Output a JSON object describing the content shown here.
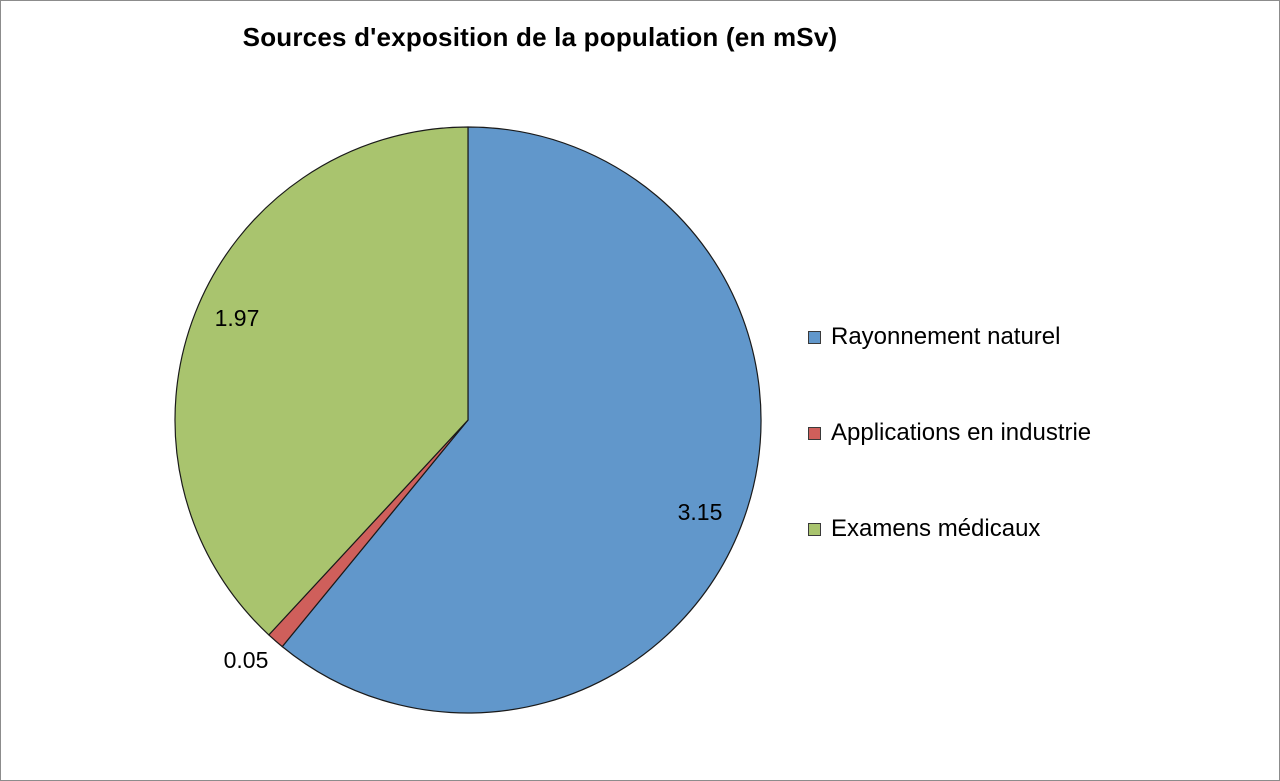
{
  "chart_data": {
    "type": "pie",
    "title": "Sources d'exposition de la population (en mSv)",
    "slices": [
      {
        "label": "Rayonnement naturel",
        "value": 3.15,
        "value_label": "3.15",
        "color": "#6197CB"
      },
      {
        "label": "Applications en industrie",
        "value": 0.05,
        "value_label": "0.05",
        "color": "#CF5F5B"
      },
      {
        "label": "Examens médicaux",
        "value": 1.97,
        "value_label": "1.97",
        "color": "#A9C46E"
      }
    ],
    "start_angle": "12 o'clock",
    "direction": "clockwise",
    "legend_position": "right"
  }
}
